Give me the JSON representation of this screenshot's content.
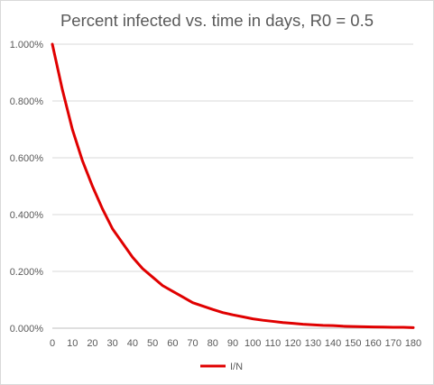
{
  "chart_data": {
    "type": "line",
    "title": "Percent infected vs. time in days, R0 = 0.5",
    "xlabel": "",
    "ylabel": "",
    "xlim": [
      0,
      180
    ],
    "ylim": [
      0,
      1.0
    ],
    "x_ticks": [
      "0",
      "10",
      "20",
      "30",
      "40",
      "50",
      "60",
      "70",
      "80",
      "90",
      "100",
      "110",
      "120",
      "130",
      "140",
      "150",
      "160",
      "170",
      "180"
    ],
    "y_ticks": [
      "0.000%",
      "0.200%",
      "0.400%",
      "0.600%",
      "0.800%",
      "1.000%"
    ],
    "grid": true,
    "legend_position": "bottom",
    "series": [
      {
        "name": "I/N",
        "color": "#e00000",
        "x": [
          0,
          5,
          10,
          15,
          20,
          25,
          30,
          35,
          40,
          45,
          50,
          55,
          60,
          65,
          70,
          75,
          80,
          85,
          90,
          95,
          100,
          105,
          110,
          115,
          120,
          125,
          130,
          135,
          140,
          145,
          150,
          155,
          160,
          165,
          170,
          175,
          180
        ],
        "y": [
          1.0,
          0.84,
          0.7,
          0.59,
          0.5,
          0.42,
          0.35,
          0.3,
          0.25,
          0.21,
          0.18,
          0.15,
          0.13,
          0.11,
          0.09,
          0.078,
          0.066,
          0.055,
          0.047,
          0.04,
          0.033,
          0.028,
          0.024,
          0.02,
          0.017,
          0.014,
          0.012,
          0.01,
          0.009,
          0.007,
          0.006,
          0.005,
          0.0045,
          0.004,
          0.003,
          0.003,
          0.002
        ]
      }
    ]
  }
}
